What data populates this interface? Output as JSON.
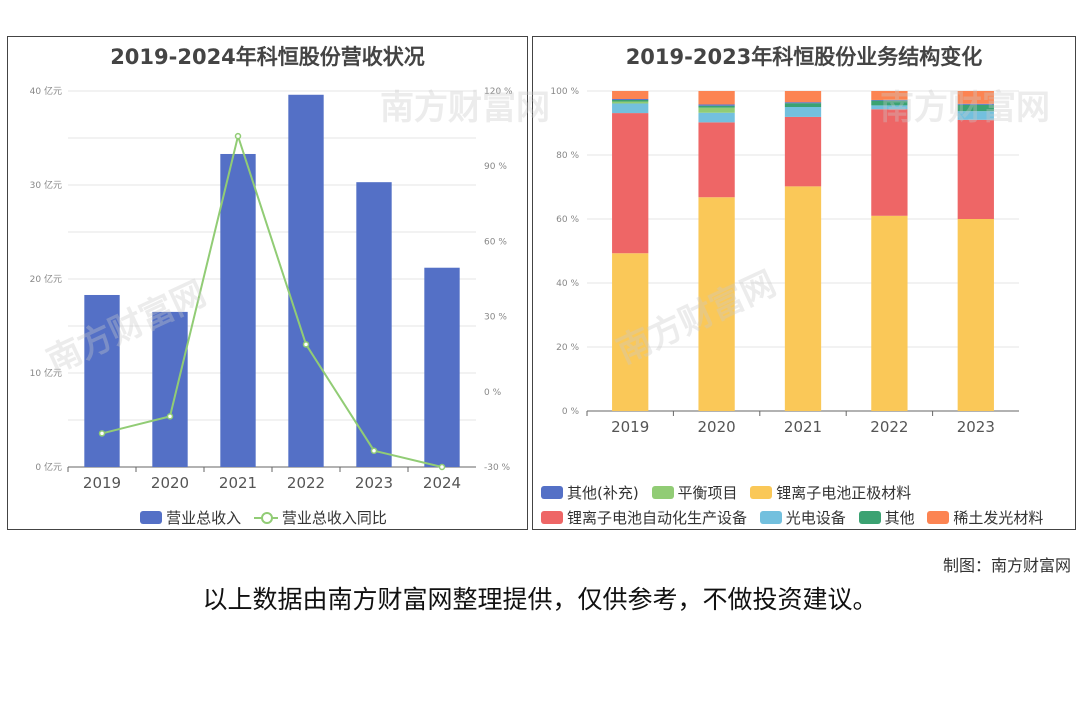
{
  "left_chart": {
    "title": "2019-2024年科恒股份营收状况",
    "legend": [
      {
        "name": "营业总收入",
        "kind": "bar",
        "color": "#5470c6"
      },
      {
        "name": "营业总收入同比",
        "kind": "line",
        "color": "#91cc75"
      }
    ]
  },
  "right_chart": {
    "title": "2019-2023年科恒股份业务结构变化",
    "legend": [
      {
        "name": "其他(补充)",
        "color": "#5470c6"
      },
      {
        "name": "平衡项目",
        "color": "#91cc75"
      },
      {
        "name": "锂离子电池正极材料",
        "color": "#fac858"
      },
      {
        "name": "锂离子电池自动化生产设备",
        "color": "#ee6666"
      },
      {
        "name": "光电设备",
        "color": "#73c0de"
      },
      {
        "name": "其他",
        "color": "#3ba272"
      },
      {
        "name": "稀土发光材料",
        "color": "#fc8452"
      }
    ]
  },
  "credit": "制图：南方财富网",
  "footer_note": "以上数据由南方财富网整理提供，仅供参考，不做投资建议。",
  "watermark": "南方财富网",
  "chart_data": [
    {
      "type": "bar",
      "title": "2019-2024年科恒股份营收状况",
      "categories": [
        "2019",
        "2020",
        "2021",
        "2022",
        "2023",
        "2024"
      ],
      "y_axis_left": {
        "min": 0,
        "max": 40,
        "ticks": [
          0,
          10,
          20,
          30,
          40
        ],
        "tick_labels": [
          "0 亿元",
          "10 亿元",
          "20 亿元",
          "30 亿元",
          "40 亿元"
        ]
      },
      "y_axis_right": {
        "min": -30,
        "max": 120,
        "ticks": [
          -30,
          0,
          30,
          60,
          90,
          120
        ],
        "tick_labels": [
          "-30 %",
          "0 %",
          "30 %",
          "60 %",
          "90 %",
          "120 %"
        ]
      },
      "grid": true,
      "legend_position": "bottom",
      "series": [
        {
          "name": "营业总收入",
          "type": "bar",
          "axis": "left",
          "values": [
            18.3,
            16.5,
            33.3,
            39.6,
            30.3,
            21.2
          ]
        },
        {
          "name": "营业总收入同比",
          "type": "line",
          "axis": "right",
          "values": [
            -16.6,
            -9.8,
            102.0,
            18.9,
            -23.5,
            -30.0
          ]
        }
      ]
    },
    {
      "type": "bar",
      "stacked": true,
      "title": "2019-2023年科恒股份业务结构变化",
      "categories": [
        "2019",
        "2020",
        "2021",
        "2022",
        "2023"
      ],
      "y_axis": {
        "min": 0,
        "max": 100,
        "ticks": [
          0,
          20,
          40,
          60,
          80,
          100
        ],
        "tick_labels": [
          "0 %",
          "20 %",
          "40 %",
          "60 %",
          "80 %",
          "100 %"
        ]
      },
      "grid": true,
      "legend_position": "bottom",
      "series": [
        {
          "name": "锂离子电池正极材料",
          "color": "#fac858",
          "values": [
            49.3,
            66.8,
            70.2,
            61.0,
            60.0
          ]
        },
        {
          "name": "锂离子电池自动化生产设备",
          "color": "#ee6666",
          "values": [
            43.8,
            23.4,
            21.7,
            33.3,
            31.0
          ]
        },
        {
          "name": "光电设备",
          "color": "#73c0de",
          "values": [
            3.0,
            3.0,
            3.1,
            1.2,
            2.7
          ]
        },
        {
          "name": "平衡项目",
          "color": "#91cc75",
          "values": [
            0.6,
            1.6,
            0.0,
            0.0,
            0.0
          ]
        },
        {
          "name": "其他",
          "color": "#3ba272",
          "values": [
            0.5,
            0.6,
            1.2,
            1.5,
            2.0
          ]
        },
        {
          "name": "其他(补充)",
          "color": "#5470c6",
          "values": [
            0.3,
            0.4,
            0.3,
            0.2,
            0.3
          ]
        },
        {
          "name": "稀土发光材料",
          "color": "#fc8452",
          "values": [
            2.5,
            4.2,
            3.5,
            2.8,
            4.0
          ]
        }
      ]
    }
  ]
}
